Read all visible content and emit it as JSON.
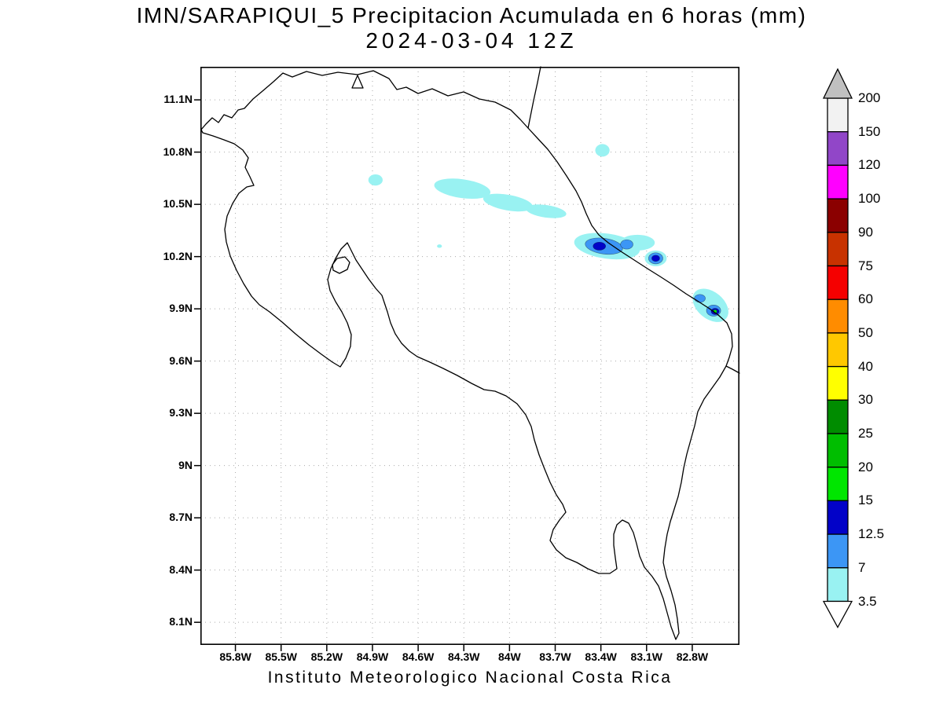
{
  "chart_data": {
    "type": "heatmap",
    "title": "IMN/SARAPIQUI_5 Precipitacion Acumulada en 6 horas (mm)",
    "subtitle": "2024-03-04 12Z",
    "caption": "Instituto Meteorologico Nacional Costa Rica",
    "region": "Costa Rica",
    "units": "mm",
    "grid": "dotted",
    "legend_position": "right",
    "x_axis": {
      "ticks": [
        85.8,
        85.5,
        85.2,
        84.9,
        84.6,
        84.3,
        84.0,
        83.7,
        83.4,
        83.1,
        82.8
      ],
      "tick_labels": [
        "85.8W",
        "85.5W",
        "85.2W",
        "84.9W",
        "84.6W",
        "84.3W",
        "84W",
        "83.7W",
        "83.4W",
        "83.1W",
        "82.8W"
      ],
      "range_deg_w": [
        86.03,
        82.49
      ]
    },
    "y_axis": {
      "ticks": [
        11.1,
        10.8,
        10.5,
        10.2,
        9.9,
        9.6,
        9.3,
        9.0,
        8.7,
        8.4,
        8.1
      ],
      "tick_labels": [
        "11.1N",
        "10.8N",
        "10.5N",
        "10.2N",
        "9.9N",
        "9.6N",
        "9.3N",
        "9N",
        "8.7N",
        "8.4N",
        "8.1N"
      ],
      "range_deg_n": [
        11.29,
        7.97
      ]
    },
    "levels_mm": [
      3.5,
      7,
      12.5,
      15,
      20,
      25,
      30,
      40,
      50,
      60,
      75,
      90,
      100,
      120,
      150,
      200
    ],
    "level_colors": [
      "#99F2F2",
      "#3C96F5",
      "#0202C8",
      "#00E600",
      "#00BE00",
      "#008C00",
      "#FFFF00",
      "#FFC800",
      "#FF8C00",
      "#F50000",
      "#C83200",
      "#8B0000",
      "#FF00FF",
      "#9146C8",
      "#F2F2F2"
    ],
    "above_max_color": "#C0C0C0",
    "below_min_color": "#FFFFFF",
    "features": [
      {
        "lon_w": 84.88,
        "lat_n": 10.64,
        "rx_deg": 0.047,
        "ry_deg": 0.032,
        "rot_deg": 0,
        "level_mm": 3.5
      },
      {
        "lon_w": 84.31,
        "lat_n": 10.59,
        "rx_deg": 0.186,
        "ry_deg": 0.054,
        "rot_deg": 8,
        "level_mm": 3.5
      },
      {
        "lon_w": 84.01,
        "lat_n": 10.51,
        "rx_deg": 0.165,
        "ry_deg": 0.045,
        "rot_deg": 10,
        "level_mm": 3.5
      },
      {
        "lon_w": 83.76,
        "lat_n": 10.46,
        "rx_deg": 0.134,
        "ry_deg": 0.036,
        "rot_deg": 8,
        "level_mm": 3.5
      },
      {
        "lon_w": 84.46,
        "lat_n": 10.26,
        "rx_deg": 0.016,
        "ry_deg": 0.01,
        "rot_deg": 0,
        "level_mm": 3.5
      },
      {
        "lon_w": 83.39,
        "lat_n": 10.81,
        "rx_deg": 0.047,
        "ry_deg": 0.036,
        "rot_deg": 0,
        "level_mm": 3.5
      },
      {
        "lon_w": 83.36,
        "lat_n": 10.26,
        "rx_deg": 0.217,
        "ry_deg": 0.072,
        "rot_deg": 8,
        "level_mm": 3.5
      },
      {
        "lon_w": 83.16,
        "lat_n": 10.28,
        "rx_deg": 0.114,
        "ry_deg": 0.045,
        "rot_deg": 0,
        "level_mm": 3.5
      },
      {
        "lon_w": 83.04,
        "lat_n": 10.19,
        "rx_deg": 0.072,
        "ry_deg": 0.045,
        "rot_deg": 0,
        "level_mm": 3.5
      },
      {
        "lon_w": 82.68,
        "lat_n": 9.92,
        "rx_deg": 0.134,
        "ry_deg": 0.077,
        "rot_deg": 40,
        "level_mm": 3.5
      },
      {
        "lon_w": 83.38,
        "lat_n": 10.26,
        "rx_deg": 0.124,
        "ry_deg": 0.045,
        "rot_deg": 8,
        "level_mm": 7
      },
      {
        "lon_w": 83.23,
        "lat_n": 10.27,
        "rx_deg": 0.041,
        "ry_deg": 0.027,
        "rot_deg": 0,
        "level_mm": 7
      },
      {
        "lon_w": 83.04,
        "lat_n": 10.19,
        "rx_deg": 0.047,
        "ry_deg": 0.032,
        "rot_deg": 0,
        "level_mm": 7
      },
      {
        "lon_w": 82.75,
        "lat_n": 9.96,
        "rx_deg": 0.036,
        "ry_deg": 0.023,
        "rot_deg": 0,
        "level_mm": 7
      },
      {
        "lon_w": 82.66,
        "lat_n": 9.89,
        "rx_deg": 0.047,
        "ry_deg": 0.032,
        "rot_deg": 0,
        "level_mm": 7
      },
      {
        "lon_w": 83.41,
        "lat_n": 10.26,
        "rx_deg": 0.041,
        "ry_deg": 0.023,
        "rot_deg": 0,
        "level_mm": 12.5
      },
      {
        "lon_w": 83.04,
        "lat_n": 10.19,
        "rx_deg": 0.026,
        "ry_deg": 0.018,
        "rot_deg": 0,
        "level_mm": 12.5
      },
      {
        "lon_w": 82.65,
        "lat_n": 9.885,
        "rx_deg": 0.026,
        "ry_deg": 0.018,
        "rot_deg": 0,
        "level_mm": 12.5
      },
      {
        "lon_w": 82.65,
        "lat_n": 9.885,
        "rx_deg": 0.012,
        "ry_deg": 0.01,
        "rot_deg": 0,
        "level_mm": 15
      }
    ]
  },
  "colorbar": {
    "labels": [
      "200",
      "150",
      "120",
      "100",
      "90",
      "75",
      "60",
      "50",
      "40",
      "30",
      "25",
      "20",
      "15",
      "12.5",
      "7",
      "3.5"
    ]
  }
}
